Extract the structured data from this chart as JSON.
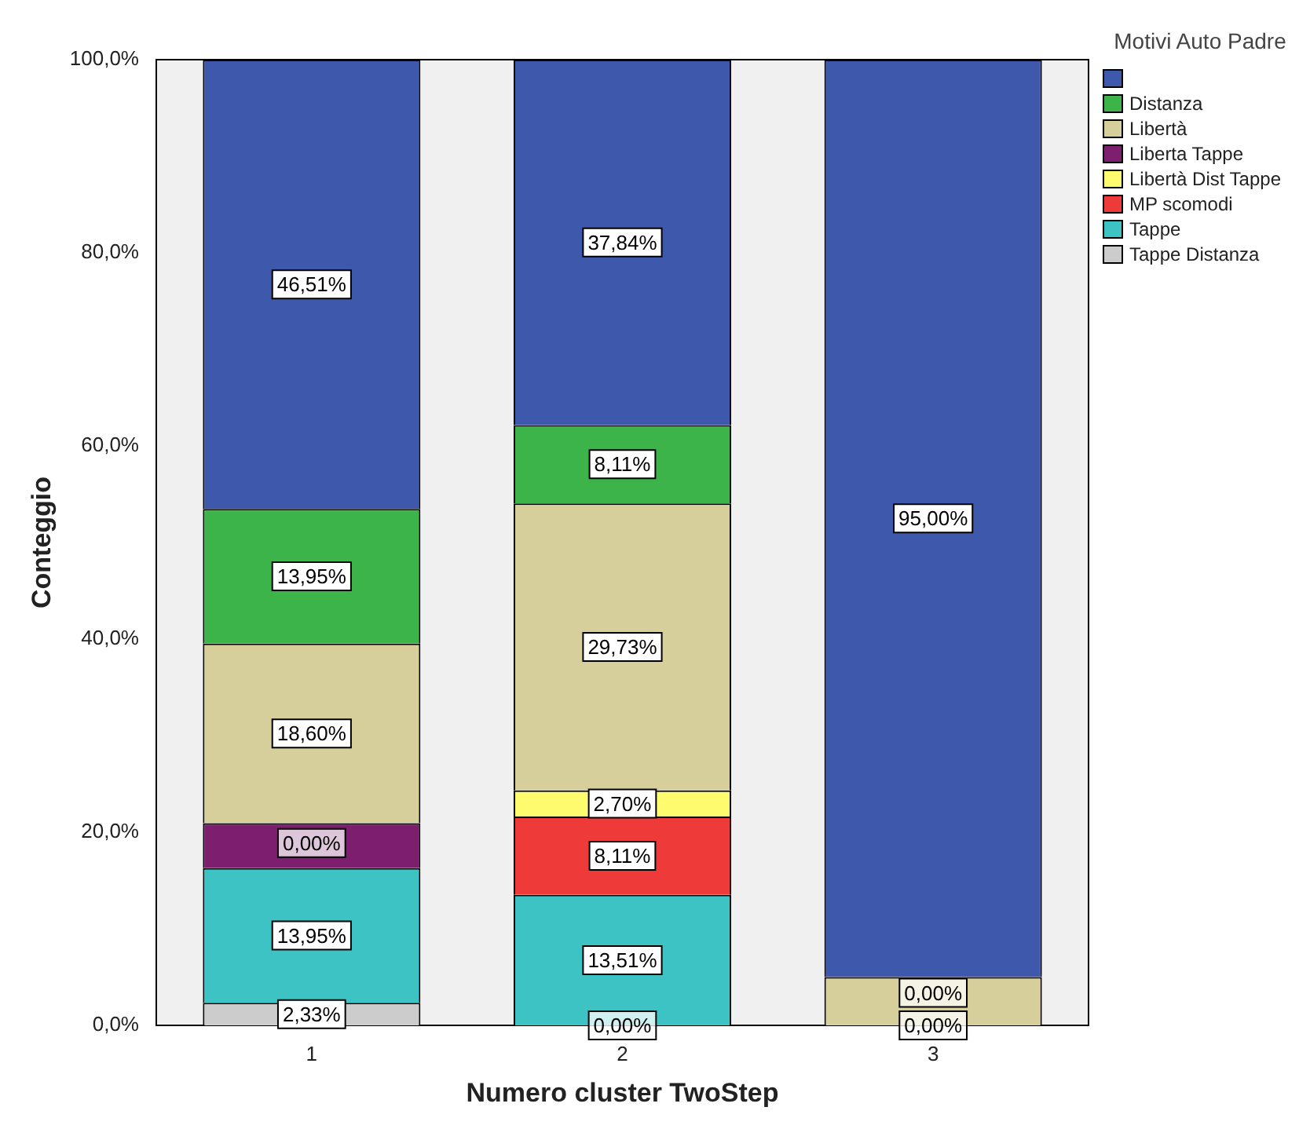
{
  "chart_data": {
    "type": "bar",
    "stacked": true,
    "xlabel": "Numero cluster TwoStep",
    "ylabel": "Conteggio",
    "legend_title": "Motivi Auto Padre",
    "legend": "top right",
    "grid": false,
    "categories": [
      "1",
      "2",
      "3"
    ],
    "ylim": [
      0,
      100
    ],
    "yticks": [
      {
        "value": 0,
        "label": "0,0%"
      },
      {
        "value": 20,
        "label": "20,0%"
      },
      {
        "value": 40,
        "label": "40,0%"
      },
      {
        "value": 60,
        "label": "60,0%"
      },
      {
        "value": 80,
        "label": "80,0%"
      },
      {
        "value": 100,
        "label": "100,0%"
      }
    ],
    "series": [
      {
        "name": "Tappe Distanza",
        "color": "#cccccc",
        "values": [
          2.33,
          0,
          0
        ],
        "value_labels": [
          "2,33%",
          null,
          null
        ]
      },
      {
        "name": "Tappe",
        "color": "#3dc3c3",
        "values": [
          13.95,
          13.51,
          0
        ],
        "value_labels": [
          "13,95%",
          "13,51%",
          null
        ]
      },
      {
        "name": "MP scomodi",
        "color": "#ef3a3a",
        "values": [
          0,
          8.11,
          0
        ],
        "value_labels": [
          null,
          "8,11%",
          null
        ]
      },
      {
        "name": "Libertà Dist Tappe",
        "color": "#fefc6e",
        "values": [
          0,
          2.7,
          0
        ],
        "value_labels": [
          null,
          "2,70%",
          null
        ]
      },
      {
        "name": "Liberta Tappe",
        "color": "#7d1f6e",
        "values": [
          4.65,
          0,
          0
        ],
        "value_labels": [
          null,
          null,
          null
        ]
      },
      {
        "name": "Libertà",
        "color": "#d6cf9c",
        "values": [
          18.6,
          29.73,
          5
        ],
        "value_labels": [
          "18,60%",
          "29,73%",
          null
        ]
      },
      {
        "name": "Distanza",
        "color": "#3cb44a",
        "values": [
          13.95,
          8.11,
          0
        ],
        "value_labels": [
          "13,95%",
          "8,11%",
          null
        ]
      },
      {
        "color": "#3e58ac",
        "values": [
          46.51,
          37.84,
          95
        ],
        "value_labels": [
          "46,51%",
          "37,84%",
          "95,00%"
        ]
      }
    ],
    "annotations": [
      {
        "text": "0,00%",
        "x": "1",
        "y": 20.5
      },
      {
        "text": "0,00%",
        "x": "2",
        "y": 0
      },
      {
        "text": "0,00%",
        "x": "3",
        "y": 5
      },
      {
        "text": "0,00%",
        "x": "3",
        "y": 0
      }
    ]
  }
}
